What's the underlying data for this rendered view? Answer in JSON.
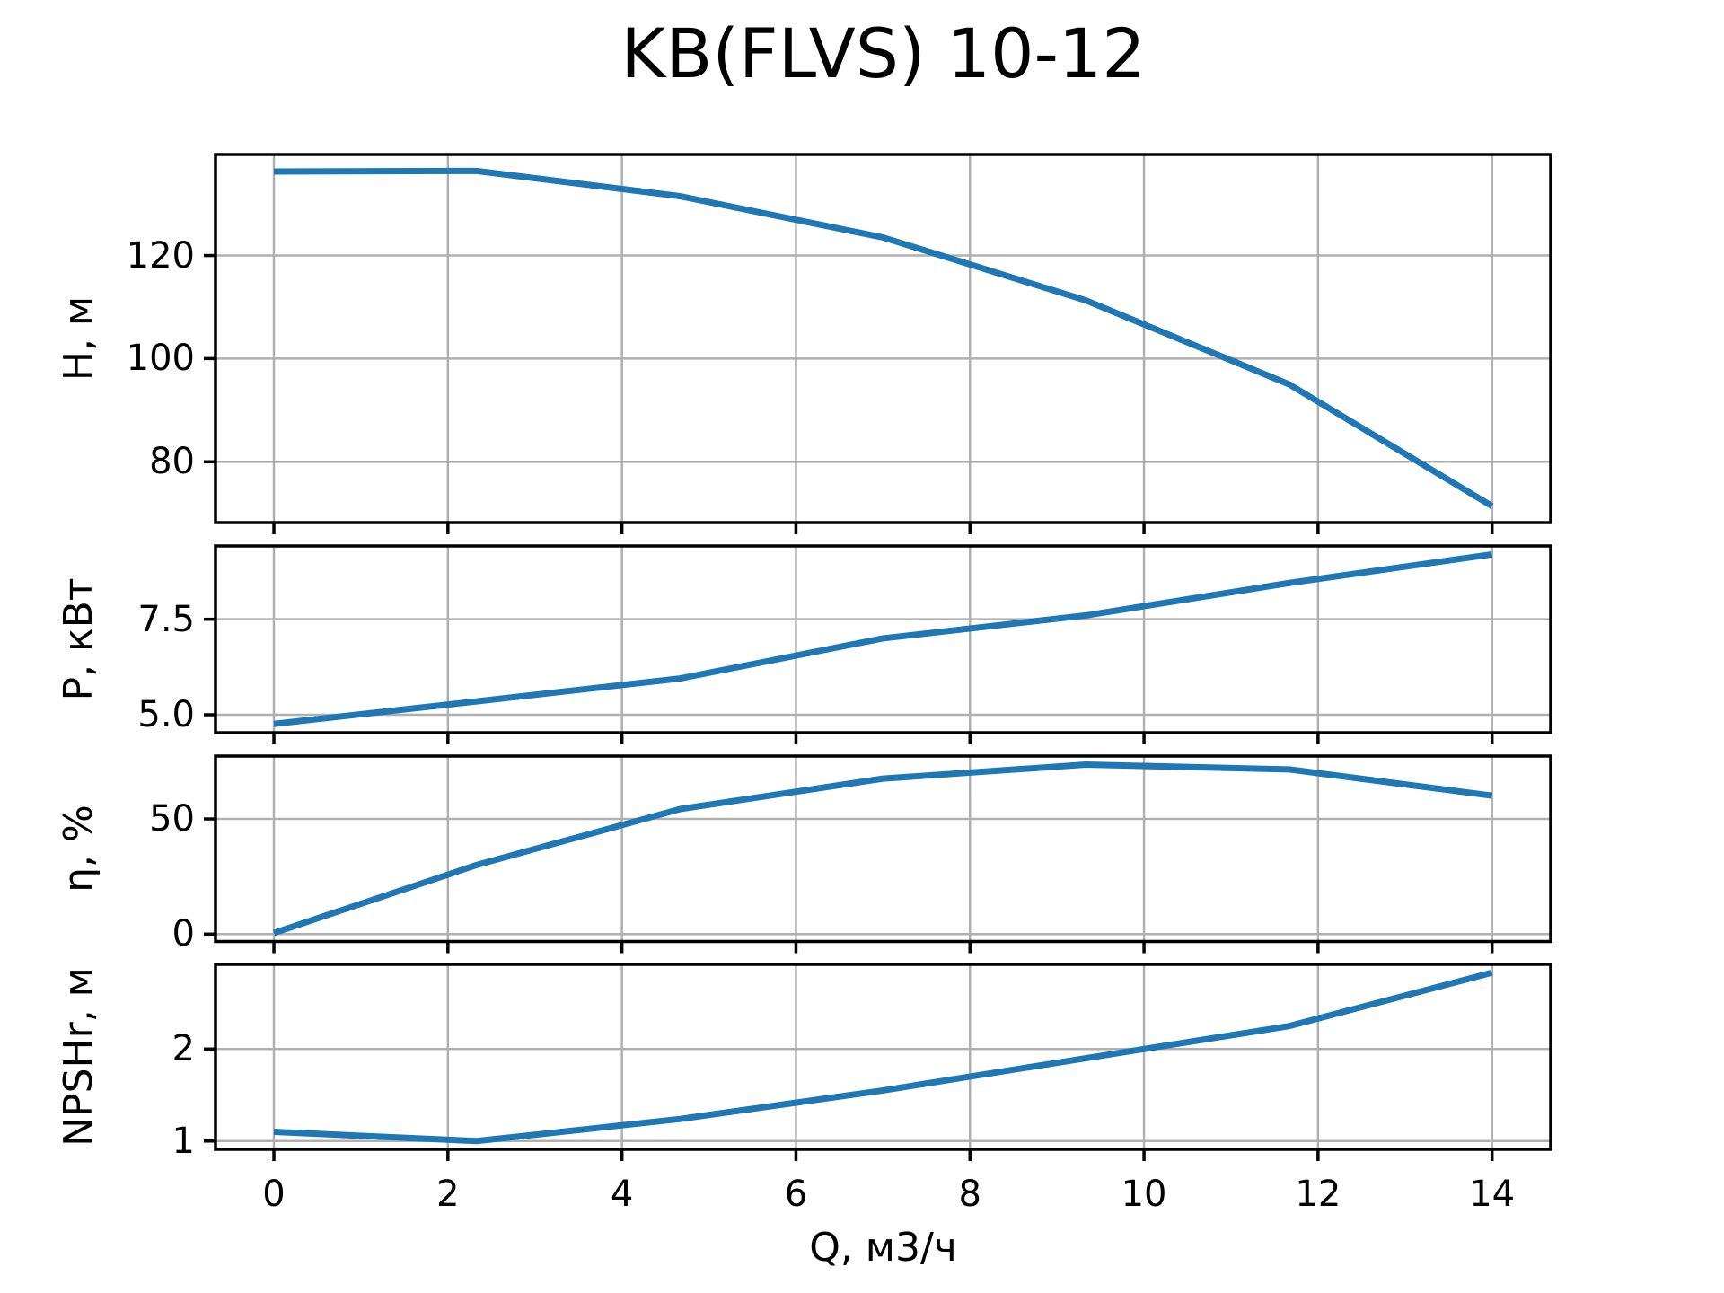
{
  "title": "KB(FLVS) 10-12",
  "xlabel": "Q, м3/ч",
  "colors": {
    "curve": "#1f77b4",
    "grid": "#b0b0b0",
    "spine": "#000000",
    "background": "#ffffff",
    "text": "#000000"
  },
  "xticks": [
    0,
    2,
    4,
    6,
    8,
    10,
    12,
    14
  ],
  "xtick_labels": [
    "0",
    "2",
    "4",
    "6",
    "8",
    "10",
    "12",
    "14"
  ],
  "xlim": [
    -0.671,
    14.674
  ],
  "chart_data": [
    {
      "type": "line",
      "name": "head-curve",
      "ylabel": "H, м",
      "x": [
        0,
        2.33,
        4.67,
        7,
        9.33,
        11.67,
        14
      ],
      "y": [
        136.3,
        136.4,
        131.5,
        123.5,
        111.3,
        95.0,
        71.4
      ],
      "ylim": [
        68.2,
        139.6
      ],
      "yticks": [
        80,
        100,
        120
      ],
      "ytick_labels": [
        "80",
        "100",
        "120"
      ],
      "grid": true,
      "legend": "none"
    },
    {
      "type": "line",
      "name": "power-curve",
      "ylabel": "P, кВт",
      "x": [
        0,
        2.33,
        4.67,
        7,
        9.33,
        11.67,
        14
      ],
      "y": [
        4.76,
        5.35,
        5.95,
        7.0,
        7.6,
        8.45,
        9.2
      ],
      "ylim": [
        4.53,
        9.42
      ],
      "yticks": [
        5.0,
        7.5
      ],
      "ytick_labels": [
        "5.0",
        "7.5"
      ],
      "grid": true,
      "legend": "none"
    },
    {
      "type": "line",
      "name": "efficiency-curve",
      "ylabel": "η, %",
      "x": [
        0,
        2.33,
        4.67,
        7,
        9.33,
        11.67,
        14
      ],
      "y": [
        0.5,
        30.0,
        54.3,
        67.5,
        73.6,
        71.5,
        60.1
      ],
      "ylim": [
        -3.2,
        77.3
      ],
      "yticks": [
        0,
        50
      ],
      "ytick_labels": [
        "0",
        "50"
      ],
      "grid": true,
      "legend": "none"
    },
    {
      "type": "line",
      "name": "npshr-curve",
      "ylabel": "NPSHr, м",
      "x": [
        0,
        2.33,
        4.67,
        7,
        9.33,
        11.67,
        14
      ],
      "y": [
        1.1,
        1.0,
        1.24,
        1.55,
        1.9,
        2.25,
        2.83
      ],
      "ylim": [
        0.91,
        2.92
      ],
      "yticks": [
        1,
        2
      ],
      "ytick_labels": [
        "1",
        "2"
      ],
      "grid": true,
      "legend": "none"
    }
  ]
}
